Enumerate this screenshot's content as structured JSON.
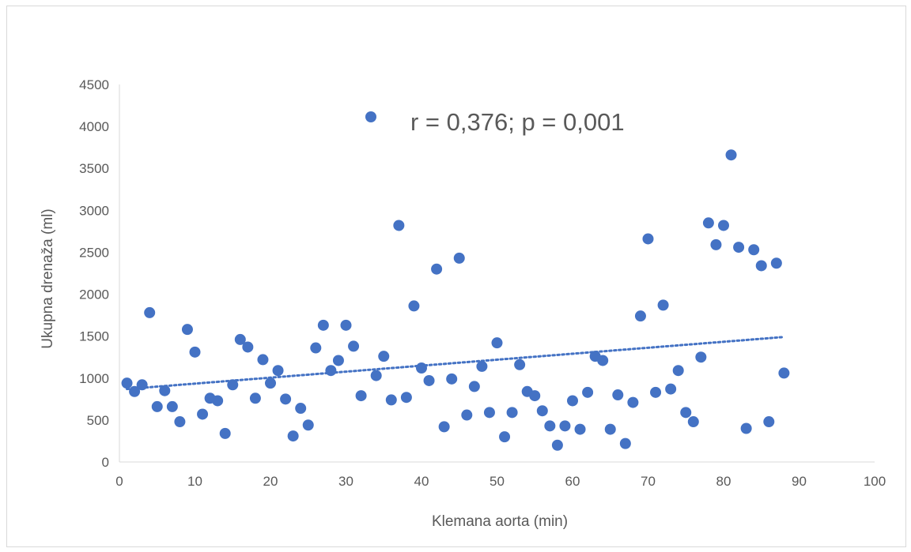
{
  "chart_data": {
    "type": "scatter",
    "xlabel": "Klemana aorta (min)",
    "ylabel": "Ukupna drenaža (ml)",
    "xlim": [
      0,
      100
    ],
    "ylim": [
      0,
      4500
    ],
    "x_ticks": [
      0,
      10,
      20,
      30,
      40,
      50,
      60,
      70,
      80,
      90,
      100
    ],
    "y_ticks": [
      0,
      500,
      1000,
      1500,
      2000,
      2500,
      3000,
      3500,
      4000,
      4500
    ],
    "grid": false,
    "annotation": "r = 0,376; p = 0,001",
    "marker_color": "#4472c4",
    "trendline": {
      "type": "linear",
      "style": "dotted",
      "x": [
        1,
        88
      ],
      "y": [
        870,
        1490
      ]
    },
    "points": [
      [
        1,
        940
      ],
      [
        2,
        840
      ],
      [
        3,
        920
      ],
      [
        4,
        1780
      ],
      [
        5,
        660
      ],
      [
        6,
        850
      ],
      [
        7,
        660
      ],
      [
        8,
        480
      ],
      [
        9,
        1580
      ],
      [
        10,
        1310
      ],
      [
        11,
        570
      ],
      [
        12,
        760
      ],
      [
        13,
        730
      ],
      [
        14,
        340
      ],
      [
        15,
        920
      ],
      [
        16,
        1460
      ],
      [
        17,
        1370
      ],
      [
        18,
        760
      ],
      [
        19,
        1220
      ],
      [
        20,
        940
      ],
      [
        21,
        1090
      ],
      [
        22,
        750
      ],
      [
        23,
        310
      ],
      [
        24,
        640
      ],
      [
        25,
        440
      ],
      [
        26,
        1360
      ],
      [
        27,
        1630
      ],
      [
        28,
        1090
      ],
      [
        29,
        1210
      ],
      [
        30,
        1630
      ],
      [
        31,
        1380
      ],
      [
        32,
        790
      ],
      [
        34,
        1030
      ],
      [
        35,
        1260
      ],
      [
        36,
        740
      ],
      [
        37,
        2820
      ],
      [
        38,
        770
      ],
      [
        39,
        1860
      ],
      [
        40,
        1120
      ],
      [
        41,
        970
      ],
      [
        42,
        2300
      ],
      [
        43,
        420
      ],
      [
        44,
        990
      ],
      [
        45,
        2430
      ],
      [
        46,
        560
      ],
      [
        47,
        900
      ],
      [
        48,
        1140
      ],
      [
        49,
        590
      ],
      [
        50,
        1420
      ],
      [
        51,
        300
      ],
      [
        52,
        590
      ],
      [
        53,
        1160
      ],
      [
        54,
        840
      ],
      [
        55,
        790
      ],
      [
        56,
        610
      ],
      [
        57,
        430
      ],
      [
        58,
        200
      ],
      [
        59,
        430
      ],
      [
        60,
        730
      ],
      [
        61,
        390
      ],
      [
        62,
        830
      ],
      [
        63,
        1260
      ],
      [
        64,
        1210
      ],
      [
        65,
        390
      ],
      [
        66,
        800
      ],
      [
        67,
        220
      ],
      [
        68,
        710
      ],
      [
        69,
        1740
      ],
      [
        70,
        2660
      ],
      [
        71,
        830
      ],
      [
        72,
        1870
      ],
      [
        73,
        870
      ],
      [
        74,
        1090
      ],
      [
        75,
        590
      ],
      [
        76,
        480
      ],
      [
        77,
        1250
      ],
      [
        78,
        2850
      ],
      [
        79,
        2590
      ],
      [
        80,
        2820
      ],
      [
        81,
        3660
      ],
      [
        82,
        2560
      ],
      [
        83,
        400
      ],
      [
        84,
        2530
      ],
      [
        85,
        2340
      ],
      [
        86,
        480
      ],
      [
        87,
        2370
      ],
      [
        88,
        1060
      ]
    ]
  }
}
